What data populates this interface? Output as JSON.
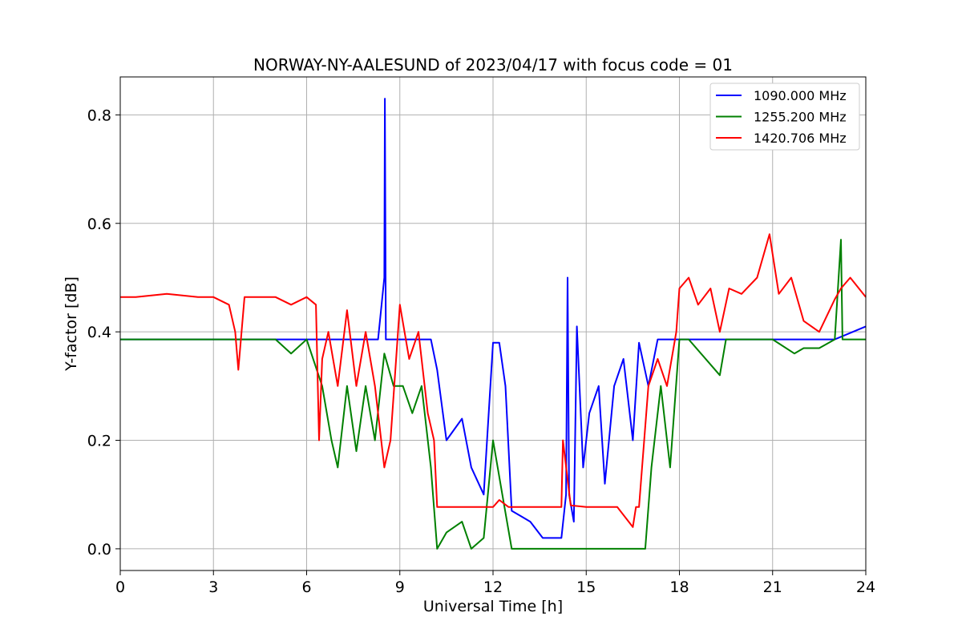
{
  "chart_data": {
    "type": "line",
    "title": "NORWAY-NY-AALESUND of 2023/04/17 with focus code = 01",
    "xlabel": "Universal Time [h]",
    "ylabel": "Y-factor [dB]",
    "xlim": [
      0,
      24
    ],
    "ylim": [
      -0.04,
      0.87
    ],
    "xticks": [
      0,
      3,
      6,
      9,
      12,
      15,
      18,
      21,
      24
    ],
    "xtick_labels": [
      "0",
      "3",
      "6",
      "9",
      "12",
      "15",
      "18",
      "21",
      "24"
    ],
    "yticks": [
      0.0,
      0.2,
      0.4,
      0.6,
      0.8
    ],
    "ytick_labels": [
      "0.0",
      "0.2",
      "0.4",
      "0.6",
      "0.8"
    ],
    "grid": true,
    "legend_position": "top-right",
    "series": [
      {
        "name": "1090.000 MHz",
        "color": "#0000ff",
        "x": [
          0,
          3.6,
          5.0,
          7.0,
          8.3,
          8.5,
          8.52,
          8.55,
          8.65,
          9.0,
          9.5,
          10.0,
          10.2,
          10.5,
          11.0,
          11.3,
          11.7,
          12.0,
          12.2,
          12.4,
          12.6,
          12.9,
          13.2,
          13.6,
          14.0,
          14.2,
          14.35,
          14.4,
          14.45,
          14.6,
          14.7,
          14.9,
          15.1,
          15.4,
          15.6,
          15.9,
          16.2,
          16.5,
          16.7,
          17.0,
          17.3,
          17.7,
          18.0,
          18.5,
          20.0,
          21.0,
          23.0,
          24.0
        ],
        "y": [
          0.386,
          0.386,
          0.386,
          0.386,
          0.386,
          0.5,
          0.83,
          0.386,
          0.386,
          0.386,
          0.386,
          0.386,
          0.33,
          0.2,
          0.24,
          0.15,
          0.1,
          0.38,
          0.38,
          0.3,
          0.07,
          0.06,
          0.05,
          0.02,
          0.02,
          0.02,
          0.1,
          0.5,
          0.1,
          0.05,
          0.41,
          0.15,
          0.25,
          0.3,
          0.12,
          0.3,
          0.35,
          0.2,
          0.38,
          0.3,
          0.386,
          0.386,
          0.386,
          0.386,
          0.386,
          0.386,
          0.386,
          0.41
        ]
      },
      {
        "name": "1255.200 MHz",
        "color": "#008000",
        "x": [
          0,
          4.0,
          5.0,
          5.5,
          6.0,
          6.5,
          6.8,
          7.0,
          7.3,
          7.6,
          7.9,
          8.2,
          8.5,
          8.8,
          9.1,
          9.4,
          9.7,
          10.0,
          10.2,
          10.5,
          11.0,
          11.3,
          11.7,
          12.0,
          12.3,
          12.6,
          13.0,
          14.0,
          15.0,
          15.6,
          15.7,
          16.5,
          16.6,
          16.9,
          17.1,
          17.4,
          17.7,
          18.0,
          18.3,
          19.3,
          19.5,
          21.0,
          21.7,
          22.0,
          22.5,
          23.0,
          23.2,
          23.25,
          24.0
        ],
        "y": [
          0.386,
          0.386,
          0.386,
          0.36,
          0.386,
          0.3,
          0.2,
          0.15,
          0.3,
          0.18,
          0.3,
          0.2,
          0.36,
          0.3,
          0.3,
          0.25,
          0.3,
          0.15,
          0.0,
          0.03,
          0.05,
          0.0,
          0.02,
          0.2,
          0.1,
          0.0,
          0.0,
          0.0,
          0.0,
          0.0,
          0.0,
          0.0,
          0.0,
          0.0,
          0.15,
          0.3,
          0.15,
          0.386,
          0.386,
          0.32,
          0.386,
          0.386,
          0.36,
          0.37,
          0.37,
          0.386,
          0.57,
          0.386,
          0.386
        ]
      },
      {
        "name": "1420.706 MHz",
        "color": "#ff0000",
        "x": [
          0,
          0.5,
          1.5,
          2.5,
          3.0,
          3.5,
          3.7,
          3.8,
          4.0,
          5.0,
          5.5,
          6.0,
          6.3,
          6.4,
          6.5,
          6.7,
          7.0,
          7.3,
          7.6,
          7.9,
          8.2,
          8.5,
          8.7,
          9.0,
          9.3,
          9.6,
          9.9,
          10.1,
          10.2,
          11.0,
          11.5,
          12.0,
          12.2,
          12.5,
          13.0,
          14.0,
          14.2,
          14.25,
          14.5,
          15.0,
          15.5,
          15.6,
          16.0,
          16.5,
          16.6,
          16.7,
          17.0,
          17.3,
          17.6,
          17.9,
          18.0,
          18.3,
          18.6,
          19.0,
          19.3,
          19.6,
          20.0,
          20.5,
          20.9,
          21.2,
          21.6,
          22.0,
          22.5,
          23.0,
          23.2,
          23.5,
          24.0
        ],
        "y": [
          0.464,
          0.464,
          0.47,
          0.464,
          0.464,
          0.45,
          0.4,
          0.33,
          0.464,
          0.464,
          0.45,
          0.464,
          0.45,
          0.2,
          0.35,
          0.4,
          0.3,
          0.44,
          0.3,
          0.4,
          0.3,
          0.15,
          0.2,
          0.45,
          0.35,
          0.4,
          0.25,
          0.2,
          0.077,
          0.077,
          0.077,
          0.077,
          0.09,
          0.077,
          0.077,
          0.077,
          0.077,
          0.2,
          0.08,
          0.077,
          0.077,
          0.077,
          0.077,
          0.04,
          0.077,
          0.077,
          0.3,
          0.35,
          0.3,
          0.4,
          0.48,
          0.5,
          0.45,
          0.48,
          0.4,
          0.48,
          0.47,
          0.5,
          0.58,
          0.47,
          0.5,
          0.42,
          0.4,
          0.46,
          0.48,
          0.5,
          0.464
        ]
      }
    ]
  }
}
